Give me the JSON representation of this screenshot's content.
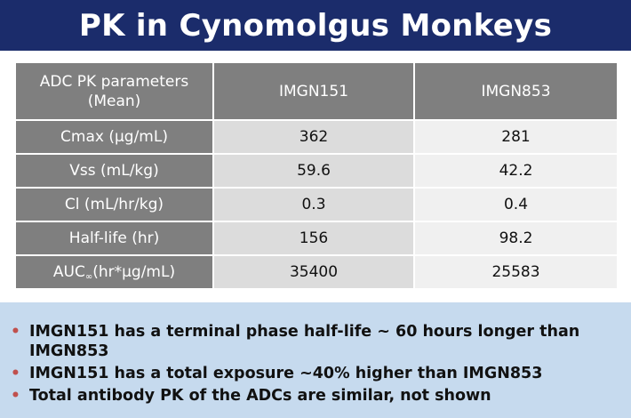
{
  "title": "PK in Cynomolgus Monkeys",
  "table": {
    "header": {
      "param_line1": "ADC PK parameters",
      "param_line2": "(Mean)",
      "col1": "IMGN151",
      "col2": "IMGN853"
    },
    "rows": [
      {
        "label": "Cmax (µg/mL)",
        "a": "362",
        "b": "281"
      },
      {
        "label": "Vss (mL/kg)",
        "a": "59.6",
        "b": "42.2"
      },
      {
        "label": "Cl (mL/hr/kg)",
        "a": "0.3",
        "b": "0.4"
      },
      {
        "label": "Half-life (hr)",
        "a": "156",
        "b": "98.2"
      },
      {
        "label_main": "AUC",
        "label_sub": "∞",
        "label_rest": "(hr*µg/mL)",
        "a": "35400",
        "b": "25583"
      }
    ]
  },
  "notes": {
    "bullet_char": "•",
    "items": [
      "IMGN151 has a terminal phase half-life ~ 60 hours longer than IMGN853",
      "IMGN151 has a total exposure ~40% higher than IMGN853",
      "Total antibody PK of the ADCs are similar, not shown"
    ]
  },
  "colors": {
    "title_bg": "#1b2c6b",
    "header_bg": "#7f7f7f",
    "col1_bg": "#dcdcdc",
    "col2_bg": "#f0f0f0",
    "notes_bg": "#c6daee",
    "bullet": "#c0504d"
  }
}
